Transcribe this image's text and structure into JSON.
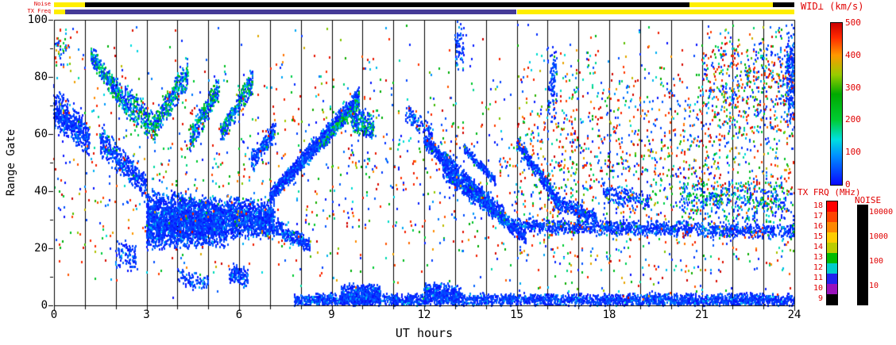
{
  "colors": {
    "label_red": "#e00000",
    "axis_black": "#000000",
    "strip_yellow": "#ffee00",
    "strip_purple": "#453a97",
    "strip_black": "#000000"
  },
  "top_bars": {
    "noise_label": "Noise",
    "txfreq_label": "TX Freq",
    "noise_segments": [
      {
        "t0": 0.0,
        "t1": 1.0,
        "color": "#ffee00"
      },
      {
        "t0": 1.0,
        "t1": 20.6,
        "color": "#000000"
      },
      {
        "t0": 20.6,
        "t1": 23.3,
        "color": "#ffee00"
      },
      {
        "t0": 23.3,
        "t1": 24.0,
        "color": "#000000"
      }
    ],
    "txfreq_segments": [
      {
        "t0": 0.0,
        "t1": 0.35,
        "color": "#ffee00"
      },
      {
        "t0": 0.35,
        "t1": 15.0,
        "color": "#453a97"
      },
      {
        "t0": 15.0,
        "t1": 24.0,
        "color": "#ffee00"
      }
    ]
  },
  "colorbars": {
    "wid": {
      "title": "WID⊥ (km/s)",
      "ticks": [
        500,
        400,
        300,
        200,
        100,
        0
      ],
      "range": [
        0,
        500
      ]
    },
    "txfrq": {
      "title": "TX FRQ (MHz)",
      "labels": [
        "18",
        "17",
        "16",
        "15",
        "14",
        "13",
        "12",
        "11",
        "10",
        "9"
      ],
      "colors": [
        "#ff0000",
        "#ff4400",
        "#ff8800",
        "#ffcc00",
        "#bbcc00",
        "#00bb00",
        "#00cccc",
        "#2222ee",
        "#9911bb",
        "#000000"
      ]
    },
    "noise": {
      "title": "NOISE",
      "labels": [
        "10000",
        "1000",
        "100",
        "10"
      ],
      "colors": [
        "#000000",
        "#000000",
        "#000000",
        "#000000",
        "#000000",
        "#000000",
        "#000000",
        "#000000",
        "#000000",
        "#000000"
      ]
    }
  },
  "chart_data": {
    "type": "heatmap",
    "title": "",
    "xlabel": "UT hours",
    "ylabel": "Range Gate",
    "xlim": [
      0,
      24
    ],
    "ylim": [
      0,
      100
    ],
    "x_tick_labels": [
      0,
      3,
      6,
      9,
      12,
      15,
      18,
      21,
      24
    ],
    "x_minor_every_hours": 1,
    "y_tick_labels": [
      0,
      20,
      40,
      60,
      80,
      100
    ],
    "grid": "vertical line every UT hour",
    "legend": "WID⊥ (km/s) colorbar 0-500, right side",
    "seed": 1337,
    "point_size": [
      2,
      3
    ],
    "colormap_stops": [
      [
        0,
        "#0808ff"
      ],
      [
        90,
        "#0090ff"
      ],
      [
        140,
        "#00e0e0"
      ],
      [
        200,
        "#00cc33"
      ],
      [
        280,
        "#00aa00"
      ],
      [
        340,
        "#99cc00"
      ],
      [
        400,
        "#ff9900"
      ],
      [
        455,
        "#ff2a00"
      ],
      [
        500,
        "#cc0000"
      ]
    ],
    "palettes": {
      "blue": [
        [
          3,
          55,
          0.87
        ],
        [
          60,
          130,
          0.13
        ]
      ],
      "bluegreen": [
        [
          3,
          55,
          0.45
        ],
        [
          70,
          150,
          0.2
        ],
        [
          150,
          270,
          0.35
        ]
      ],
      "noise": [
        [
          3,
          60,
          0.28
        ],
        [
          70,
          160,
          0.14
        ],
        [
          160,
          300,
          0.18
        ],
        [
          300,
          430,
          0.12
        ],
        [
          430,
          500,
          0.28
        ]
      ]
    },
    "features": [
      {
        "t0": 0.0,
        "t1": 1.15,
        "g0": 70,
        "g1": 58,
        "h0": 8,
        "h1": 6,
        "n": 520,
        "p": "blue"
      },
      {
        "t0": 0.05,
        "t1": 0.55,
        "g0": 91,
        "g1": 90,
        "h0": 8,
        "h1": 8,
        "n": 45,
        "p": "noise"
      },
      {
        "t0": 1.2,
        "t1": 2.35,
        "g0": 88,
        "g1": 70,
        "h0": 4,
        "h1": 5,
        "n": 360,
        "p": "bluegreen"
      },
      {
        "t0": 1.5,
        "t1": 3.0,
        "g0": 58,
        "g1": 42,
        "h0": 6,
        "h1": 5,
        "n": 380,
        "p": "blue"
      },
      {
        "t0": 2.3,
        "t1": 3.3,
        "g0": 72,
        "g1": 62,
        "h0": 7,
        "h1": 6,
        "n": 270,
        "p": "bluegreen"
      },
      {
        "t0": 3.0,
        "t1": 5.6,
        "g0": 30,
        "g1": 29,
        "h0": 11,
        "h1": 9,
        "n": 2600,
        "p": "blue"
      },
      {
        "t0": 5.6,
        "t1": 7.15,
        "g0": 31,
        "g1": 30,
        "h0": 8,
        "h1": 7,
        "n": 1000,
        "p": "blue"
      },
      {
        "t0": 3.2,
        "t1": 4.35,
        "g0": 62,
        "g1": 82,
        "h0": 5,
        "h1": 6,
        "n": 340,
        "p": "bluegreen"
      },
      {
        "t0": 4.4,
        "t1": 5.35,
        "g0": 58,
        "g1": 76,
        "h0": 5,
        "h1": 5,
        "n": 300,
        "p": "bluegreen"
      },
      {
        "t0": 5.4,
        "t1": 6.45,
        "g0": 60,
        "g1": 79,
        "h0": 4,
        "h1": 5,
        "n": 300,
        "p": "bluegreen"
      },
      {
        "t0": 6.4,
        "t1": 7.2,
        "g0": 50,
        "g1": 62,
        "h0": 5,
        "h1": 4,
        "n": 190,
        "p": "blue"
      },
      {
        "t0": 7.0,
        "t1": 9.9,
        "g0": 38,
        "g1": 73,
        "h0": 3,
        "h1": 4,
        "n": 1150,
        "p": "blue"
      },
      {
        "t0": 8.6,
        "t1": 9.9,
        "g0": 55,
        "g1": 72,
        "h0": 2,
        "h1": 3,
        "n": 280,
        "p": "bluegreen"
      },
      {
        "t0": 7.2,
        "t1": 8.3,
        "g0": 27,
        "g1": 21,
        "h0": 4,
        "h1": 3,
        "n": 230,
        "p": "blue"
      },
      {
        "t0": 9.6,
        "t1": 10.4,
        "g0": 66,
        "g1": 62,
        "h0": 6,
        "h1": 5,
        "n": 230,
        "p": "bluegreen"
      },
      {
        "t0": 7.8,
        "t1": 24.0,
        "g0": 2,
        "g1": 2,
        "h0": 2.5,
        "h1": 2.5,
        "n": 2700,
        "p": "blue"
      },
      {
        "t0": 9.3,
        "t1": 10.6,
        "g0": 4,
        "g1": 4,
        "h0": 4,
        "h1": 4,
        "n": 520,
        "p": "blue"
      },
      {
        "t0": 12.0,
        "t1": 13.2,
        "g0": 5,
        "g1": 4,
        "h0": 4,
        "h1": 3,
        "n": 360,
        "p": "blue"
      },
      {
        "t0": 11.4,
        "t1": 12.3,
        "g0": 68,
        "g1": 60,
        "h0": 5,
        "h1": 4,
        "n": 95,
        "p": "blue"
      },
      {
        "t0": 12.0,
        "t1": 14.6,
        "g0": 58,
        "g1": 31,
        "h0": 3,
        "h1": 4,
        "n": 820,
        "p": "blue"
      },
      {
        "t0": 12.6,
        "t1": 15.3,
        "g0": 47,
        "g1": 24,
        "h0": 3,
        "h1": 3,
        "n": 660,
        "p": "blue"
      },
      {
        "t0": 13.3,
        "t1": 14.3,
        "g0": 55,
        "g1": 44,
        "h0": 2,
        "h1": 2,
        "n": 170,
        "p": "blue"
      },
      {
        "t0": 15.0,
        "t1": 16.4,
        "g0": 57,
        "g1": 36,
        "h0": 3,
        "h1": 3,
        "n": 340,
        "p": "blue"
      },
      {
        "t0": 14.8,
        "t1": 24.0,
        "g0": 28,
        "g1": 26,
        "h0": 3,
        "h1": 3,
        "n": 1250,
        "p": "blue"
      },
      {
        "t0": 16.2,
        "t1": 17.6,
        "g0": 36,
        "g1": 31,
        "h0": 3,
        "h1": 3,
        "n": 270,
        "p": "blue"
      },
      {
        "t0": 17.8,
        "t1": 19.3,
        "g0": 40,
        "g1": 36,
        "h0": 4,
        "h1": 4,
        "n": 150,
        "p": "blue"
      },
      {
        "t0": 20.3,
        "t1": 23.8,
        "g0": 38,
        "g1": 36,
        "h0": 8,
        "h1": 8,
        "n": 380,
        "p": "bluegreen"
      },
      {
        "t0": 15.0,
        "t1": 24.0,
        "g0": 50,
        "g1": 50,
        "h0": 50,
        "h1": 50,
        "n": 1600,
        "p": "noise"
      },
      {
        "t0": 0.0,
        "t1": 15.0,
        "g0": 50,
        "g1": 50,
        "h0": 50,
        "h1": 50,
        "n": 850,
        "p": "noise"
      },
      {
        "t0": 21.0,
        "t1": 24.0,
        "g0": 78,
        "g1": 78,
        "h0": 22,
        "h1": 22,
        "n": 480,
        "p": "noise"
      },
      {
        "t0": 23.75,
        "t1": 24.0,
        "g0": 80,
        "g1": 80,
        "h0": 20,
        "h1": 20,
        "n": 170,
        "p": "blue"
      },
      {
        "t0": 2.0,
        "t1": 2.7,
        "g0": 19,
        "g1": 17,
        "h0": 6,
        "h1": 6,
        "n": 95,
        "p": "blue"
      },
      {
        "t0": 4.0,
        "t1": 5.0,
        "g0": 10,
        "g1": 8,
        "h0": 4,
        "h1": 3,
        "n": 85,
        "p": "blue"
      },
      {
        "t0": 5.7,
        "t1": 6.3,
        "g0": 11,
        "g1": 10,
        "h0": 4,
        "h1": 4,
        "n": 140,
        "p": "blue"
      },
      {
        "t0": 16.0,
        "t1": 16.3,
        "g0": 78,
        "g1": 78,
        "h0": 14,
        "h1": 14,
        "n": 90,
        "p": "blue"
      },
      {
        "t0": 13.0,
        "t1": 13.3,
        "g0": 90,
        "g1": 90,
        "h0": 10,
        "h1": 10,
        "n": 60,
        "p": "blue"
      },
      {
        "t0": 0.0,
        "t1": 24.0,
        "g0": 50,
        "g1": 50,
        "h0": 50,
        "h1": 50,
        "n": 320,
        "p": "noise"
      }
    ]
  }
}
